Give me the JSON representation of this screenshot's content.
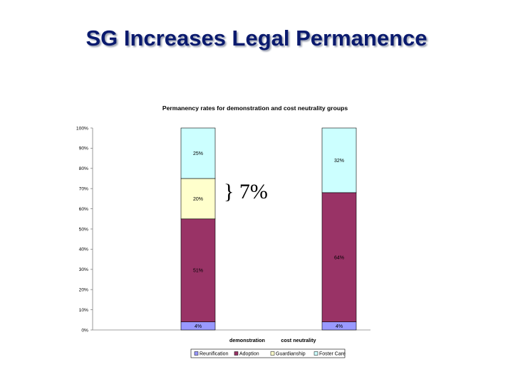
{
  "slide": {
    "title": "SG Increases Legal Permanence"
  },
  "colors": {
    "title": "#0a1a6e",
    "reunification": "#9999ff",
    "adoption": "#993366",
    "guardianship": "#ffffcc",
    "foster_care": "#ccffff"
  },
  "annotation": {
    "text": "} 7%"
  },
  "chart_data": {
    "type": "bar",
    "stacked": true,
    "title": "Permanency rates for demonstration and cost neutrality groups",
    "categories": [
      "demonstration",
      "cost neutrality"
    ],
    "series": [
      {
        "name": "Reunification",
        "values": [
          4,
          4
        ],
        "labels": [
          "4%",
          "4%"
        ],
        "color": "#9999ff"
      },
      {
        "name": "Adoption",
        "values": [
          51,
          64
        ],
        "labels": [
          "51%",
          "64%"
        ],
        "color": "#993366"
      },
      {
        "name": "Guardianship",
        "values": [
          20,
          0
        ],
        "labels": [
          "20%",
          ""
        ],
        "color": "#ffffcc"
      },
      {
        "name": "Foster Care",
        "values": [
          25,
          32
        ],
        "labels": [
          "25%",
          "32%"
        ],
        "color": "#ccffff"
      }
    ],
    "yticks": [
      "0%",
      "10%",
      "20%",
      "30%",
      "40%",
      "50%",
      "60%",
      "70%",
      "80%",
      "90%",
      "100%"
    ],
    "ylim": [
      0,
      100
    ],
    "grid": false,
    "legend": "bottom"
  }
}
